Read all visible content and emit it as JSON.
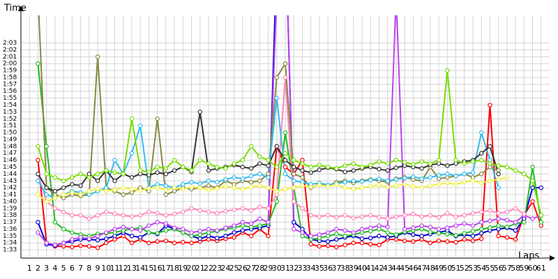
{
  "chart_data": {
    "type": "line",
    "y_label": "Time",
    "x_label": "Laps",
    "grid": true,
    "xlim": [
      0,
      62
    ],
    "ylim": [
      92,
      127
    ],
    "x": [
      1,
      2,
      3,
      4,
      5,
      6,
      7,
      8,
      9,
      10,
      11,
      12,
      13,
      14,
      15,
      16,
      17,
      18,
      19,
      20,
      21,
      22,
      23,
      24,
      25,
      26,
      27,
      28,
      29,
      30,
      31,
      32,
      33,
      34,
      35,
      36,
      37,
      38,
      39,
      40,
      41,
      42,
      43,
      44,
      45,
      46,
      47,
      48,
      49,
      50,
      51,
      52,
      53,
      54,
      55,
      56,
      57,
      58,
      59,
      60,
      61
    ],
    "yticks": [
      {
        "value": 93,
        "label": "1:33"
      },
      {
        "value": 94,
        "label": "1:34"
      },
      {
        "value": 95,
        "label": "1:35"
      },
      {
        "value": 96,
        "label": "1:36"
      },
      {
        "value": 97,
        "label": "1:37"
      },
      {
        "value": 98,
        "label": "1:38"
      },
      {
        "value": 99,
        "label": "1:39"
      },
      {
        "value": 100,
        "label": "1:40"
      },
      {
        "value": 101,
        "label": "1:41"
      },
      {
        "value": 102,
        "label": "1:42"
      },
      {
        "value": 103,
        "label": "1:43"
      },
      {
        "value": 104,
        "label": "1:44"
      },
      {
        "value": 105,
        "label": "1:45"
      },
      {
        "value": 106,
        "label": "1:46"
      },
      {
        "value": 107,
        "label": "1:47"
      },
      {
        "value": 108,
        "label": "1:48"
      },
      {
        "value": 109,
        "label": "1:49"
      },
      {
        "value": 110,
        "label": "1:50"
      },
      {
        "value": 111,
        "label": "1:51"
      },
      {
        "value": 112,
        "label": "1:52"
      },
      {
        "value": 113,
        "label": "1:53"
      },
      {
        "value": 114,
        "label": "1:54"
      },
      {
        "value": 115,
        "label": "1:55"
      },
      {
        "value": 116,
        "label": "1:56"
      },
      {
        "value": 117,
        "label": "1:57"
      },
      {
        "value": 118,
        "label": "1:58"
      },
      {
        "value": 119,
        "label": "1:59"
      },
      {
        "value": 120,
        "label": "2:00"
      },
      {
        "value": 121,
        "label": "2:01"
      },
      {
        "value": 122,
        "label": "2:02"
      },
      {
        "value": 123,
        "label": "2:03"
      }
    ],
    "series": [
      {
        "color": "#ff0000",
        "values": [
          null,
          106,
          94,
          93.5,
          93.5,
          93.4,
          93.6,
          93.5,
          93.3,
          94,
          94.5,
          95,
          94,
          94.5,
          94,
          94.2,
          94.3,
          94,
          94.1,
          94,
          94.2,
          94.5,
          94.3,
          94.6,
          94.8,
          95.5,
          95,
          96,
          95,
          108,
          105,
          104,
          106,
          93.8,
          93.5,
          93.6,
          93.4,
          93.7,
          94,
          94,
          93.8,
          93.7,
          94.5,
          94.5,
          94.3,
          94.2,
          94.5,
          94,
          94.3,
          94.2,
          94.1,
          94.5,
          94.3,
          94.6,
          114,
          95,
          94.8,
          94.5,
          98,
          100,
          96.5
        ]
      },
      {
        "color": "#0000cc",
        "values": [
          null,
          97,
          93.8,
          93.6,
          94,
          94.2,
          94.5,
          94.5,
          94.4,
          94.6,
          95,
          95.5,
          95,
          94.8,
          95.5,
          95.3,
          96.5,
          96,
          95.5,
          95,
          94.6,
          95,
          94.7,
          95,
          95.5,
          95.8,
          96,
          96.2,
          96.5,
          135,
          140,
          97,
          96,
          94.5,
          94.3,
          94.2,
          94.5,
          94.8,
          95,
          94.6,
          94.7,
          95,
          94.8,
          95,
          95.5,
          95.2,
          95,
          95.3,
          95.5,
          95.8,
          95,
          95.2,
          95,
          95.4,
          95.8,
          96,
          96.2,
          95.8,
          97.5,
          102,
          102
        ]
      },
      {
        "color": "#22bb22",
        "values": [
          null,
          120,
          108,
          97,
          96,
          95.5,
          95.2,
          95,
          95.3,
          95.4,
          95.5,
          95.8,
          96,
          96.2,
          95.5,
          95.4,
          95.8,
          96,
          95.5,
          95,
          95.2,
          95.5,
          95.7,
          96,
          96.2,
          96.5,
          96.3,
          96.5,
          96.8,
          100,
          110,
          102,
          95,
          94.5,
          94.7,
          95,
          95.3,
          95,
          95.2,
          95.5,
          95.7,
          96,
          95.5,
          95.2,
          95.6,
          95.8,
          96,
          95.6,
          95.4,
          95.3,
          95.1,
          95.4,
          95.7,
          96,
          96.2,
          96.5,
          96.3,
          96.8,
          97,
          105,
          97
        ]
      },
      {
        "color": "#bb44ee",
        "values": [
          null,
          95.5,
          94,
          93.7,
          94,
          94.5,
          94.8,
          94.6,
          95,
          95.5,
          96,
          96.3,
          96,
          95.8,
          96.5,
          97,
          96.8,
          96.2,
          96,
          95.5,
          95.7,
          96,
          95.8,
          96.2,
          96.5,
          97,
          96.8,
          97.5,
          97,
          130,
          140,
          96,
          95.5,
          95,
          95.2,
          95.5,
          96,
          95.8,
          95.5,
          96,
          96.2,
          96.5,
          96.3,
          130,
          96,
          96.2,
          96.5,
          96.3,
          96,
          96.2,
          96.5,
          96.8,
          96.5,
          97,
          97.2,
          97.5,
          97.3,
          97,
          98,
          97.5,
          98
        ]
      },
      {
        "color": "#ff88bb",
        "values": [
          null,
          104,
          100,
          99,
          98.5,
          98,
          98,
          97.5,
          98,
          98.5,
          98.2,
          98,
          97.8,
          98,
          98.5,
          98.3,
          98,
          98.2,
          98.5,
          99,
          98.7,
          98.5,
          98.3,
          98.6,
          98.8,
          99,
          98.7,
          99.2,
          99,
          101,
          118,
          100,
          99,
          98,
          97.8,
          98,
          97.7,
          98,
          97.6,
          97.8,
          98,
          97.7,
          97.5,
          97.8,
          98,
          98.2,
          97.8,
          98,
          97.7,
          98.3,
          97.8,
          98,
          98.3,
          98.5,
          98.7,
          98.3,
          98.5,
          99,
          98.2,
          null,
          null
        ]
      },
      {
        "color": "#888844",
        "values": [
          null,
          130,
          102,
          101,
          100.5,
          101,
          100.8,
          101,
          121,
          102,
          101.5,
          101,
          101.3,
          102,
          101.5,
          112,
          101,
          101.5,
          102,
          101.8,
          102,
          102.3,
          102,
          103,
          102.5,
          103,
          102.8,
          103,
          104,
          118,
          120,
          104,
          103.5,
          102,
          102.5,
          102.3,
          102.8,
          103,
          102.7,
          103,
          103.2,
          103,
          102.8,
          103.3,
          103.5,
          103.2,
          103,
          105,
          103.3,
          103.5,
          103.7,
          104,
          103.5,
          104,
          105,
          104.5,
          null,
          null,
          null,
          null,
          null
        ]
      },
      {
        "color": "#33bbee",
        "values": [
          null,
          103,
          101,
          100.5,
          101,
          101.5,
          101.3,
          101,
          101.5,
          102,
          106,
          104,
          107,
          111,
          102,
          102.5,
          102.3,
          102,
          102.5,
          102.8,
          102.6,
          103,
          102.8,
          103.2,
          103.5,
          103.3,
          103.7,
          104,
          103.5,
          115,
          104,
          103,
          102.8,
          102.5,
          102.7,
          102.4,
          102.6,
          102.8,
          103,
          102.9,
          103.1,
          103.3,
          103,
          103.2,
          103.4,
          103.6,
          103.3,
          103.5,
          103.8,
          104,
          103.7,
          104,
          104.2,
          110,
          106,
          102,
          null,
          null,
          null,
          null,
          null
        ]
      },
      {
        "color": "#eeee44",
        "values": [
          null,
          101,
          100,
          100.5,
          101,
          101.3,
          101,
          101.5,
          101.8,
          101.5,
          101.7,
          102,
          101.8,
          101.6,
          101.9,
          102,
          101.7,
          102,
          101.8,
          102.1,
          102,
          101.7,
          101.9,
          102.2,
          102,
          101.8,
          102.1,
          102.3,
          102,
          101.5,
          101.8,
          102,
          102.3,
          102.1,
          102.4,
          102.2,
          102.5,
          102,
          101.8,
          102,
          102.2,
          102.4,
          102.1,
          102.3,
          102.5,
          102.2,
          102,
          102.3,
          102.5,
          102.7,
          102.5,
          102.8,
          103,
          102.7,
          103,
          103.2,
          103.5,
          null,
          null,
          null,
          null
        ]
      },
      {
        "color": "#333333",
        "values": [
          null,
          104,
          102,
          101.5,
          102,
          102.5,
          102.3,
          104,
          103,
          104.5,
          103,
          104,
          103.5,
          104,
          103.8,
          104.2,
          104,
          104.5,
          105,
          104.3,
          113,
          104.5,
          104.8,
          105,
          105.3,
          105,
          104.8,
          105.5,
          105.2,
          108,
          106,
          105,
          104.5,
          104.2,
          104.6,
          104.9,
          104.7,
          104.3,
          104.5,
          104.8,
          105,
          104.7,
          104.5,
          104.9,
          105.2,
          105,
          104.8,
          105.3,
          105.5,
          105.2,
          105.5,
          105.8,
          106,
          107,
          108,
          104,
          null,
          null,
          null,
          null,
          null
        ]
      },
      {
        "color": "#77dd00",
        "values": [
          null,
          108,
          104,
          103.5,
          103,
          103.5,
          104,
          103.5,
          104,
          104.5,
          104.2,
          104,
          112,
          104.5,
          104.3,
          105,
          104.8,
          106,
          105,
          104.5,
          106,
          105.5,
          105,
          104.8,
          105.5,
          106,
          108,
          106.5,
          106,
          105,
          107,
          106,
          105.5,
          105,
          105.3,
          105,
          104.8,
          105.2,
          105.5,
          105,
          105.3,
          105.8,
          105.5,
          106,
          105.7,
          105.4,
          105.8,
          105.5,
          106,
          119,
          106,
          105.5,
          105.8,
          106,
          105.5,
          105.2,
          105,
          104.5,
          104,
          103,
          98
        ]
      }
    ]
  }
}
